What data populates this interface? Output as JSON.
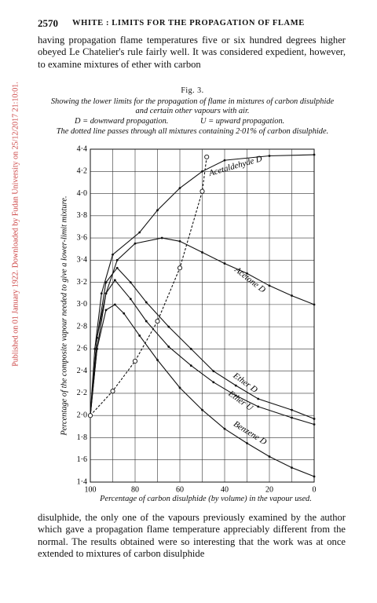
{
  "header": {
    "page": "2570",
    "title": "WHITE : LIMITS FOR THE PROPAGATION OF FLAME"
  },
  "side_note": "Published on 01 January 1922. Downloaded by Fudan University on 25/12/2017 21:10:01.",
  "body": {
    "paragraphs": [
      "having propagation flame temperatures five or six hundred degrees higher obeyed Le Chatelier's rule fairly well. It was considered expedient, however, to examine mixtures of ether with carbon",
      "disulphide, the only one of the vapours previously examined by the author which gave a propagation flame temperature appreciably different from the normal. The results obtained were so interesting that the work was at once extended to mixtures of carbon disulphide"
    ]
  },
  "chart_data": {
    "type": "line",
    "title": "Fig. 3.",
    "caption": "Showing the lower limits for the propagation of flame in mixtures of carbon disulphide and certain other vapours with air.",
    "notes": [
      "D = downward propagation.",
      "U = upward propagation."
    ],
    "annotation": "The dotted line passes through all mixtures containing 2·01% of carbon disulphide.",
    "xlabel": "Percentage of carbon disulphide (by volume) in the vapour used.",
    "ylabel": "Percentage of the composite vapour needed to give a lower-limit mixture.",
    "xlim": [
      100,
      0
    ],
    "ylim": [
      1.4,
      4.4
    ],
    "xticks": [
      100,
      80,
      60,
      40,
      20,
      0
    ],
    "xminor": [
      90,
      70,
      50,
      30,
      10
    ],
    "yticks": [
      {
        "value": 1.4,
        "label": "1·4"
      },
      {
        "value": 1.6,
        "label": "1·6"
      },
      {
        "value": 1.8,
        "label": "1·8"
      },
      {
        "value": 2.0,
        "label": "2·0"
      },
      {
        "value": 2.2,
        "label": "2·2"
      },
      {
        "value": 2.4,
        "label": "2·4"
      },
      {
        "value": 2.6,
        "label": "2·6"
      },
      {
        "value": 2.8,
        "label": "2·8"
      },
      {
        "value": 3.0,
        "label": "3·0"
      },
      {
        "value": 3.2,
        "label": "3·2"
      },
      {
        "value": 3.4,
        "label": "3·4"
      },
      {
        "value": 3.6,
        "label": "3·6"
      },
      {
        "value": 3.8,
        "label": "3·8"
      },
      {
        "value": 4.0,
        "label": "4·0"
      },
      {
        "value": 4.2,
        "label": "4·2"
      },
      {
        "value": 4.4,
        "label": "4·4"
      }
    ],
    "grid": true,
    "series": [
      {
        "name": "Acetaldehyde D",
        "color": "#111111",
        "style": "solid",
        "x": [
          100,
          98,
          95,
          90,
          78,
          70,
          60,
          50,
          40,
          20,
          0
        ],
        "values": [
          2.0,
          2.6,
          3.1,
          3.45,
          3.65,
          3.85,
          4.05,
          4.2,
          4.3,
          4.34,
          4.35
        ]
      },
      {
        "name": "Acetone D",
        "color": "#111111",
        "style": "solid",
        "x": [
          100,
          97,
          93,
          88,
          80,
          68,
          60,
          50,
          40,
          30,
          20,
          10,
          0
        ],
        "values": [
          2.0,
          2.6,
          3.1,
          3.4,
          3.55,
          3.6,
          3.57,
          3.47,
          3.37,
          3.28,
          3.17,
          3.08,
          3.0
        ]
      },
      {
        "name": "Ether D",
        "color": "#111111",
        "style": "solid",
        "x": [
          100,
          97,
          93,
          88,
          82,
          75,
          65,
          55,
          45,
          35,
          25,
          10,
          0
        ],
        "values": [
          2.0,
          2.7,
          3.2,
          3.33,
          3.2,
          3.02,
          2.8,
          2.6,
          2.4,
          2.27,
          2.15,
          2.05,
          1.97
        ]
      },
      {
        "name": "Ether U",
        "color": "#111111",
        "style": "solid",
        "x": [
          100,
          97,
          93,
          89,
          82,
          75,
          65,
          55,
          45,
          35,
          25,
          10,
          0
        ],
        "values": [
          2.0,
          2.7,
          3.1,
          3.22,
          3.05,
          2.85,
          2.62,
          2.45,
          2.3,
          2.18,
          2.08,
          1.98,
          1.92
        ]
      },
      {
        "name": "Benzene D",
        "color": "#111111",
        "style": "solid",
        "x": [
          100,
          97,
          93,
          89,
          85,
          78,
          70,
          60,
          50,
          40,
          30,
          20,
          10,
          0
        ],
        "values": [
          2.0,
          2.6,
          2.95,
          3.0,
          2.92,
          2.72,
          2.5,
          2.25,
          2.05,
          1.88,
          1.75,
          1.63,
          1.53,
          1.45
        ]
      },
      {
        "color": "#111111",
        "style": "dotted",
        "x": [
          100,
          90,
          80,
          70,
          60,
          50,
          48
        ],
        "values": [
          2.0,
          2.22,
          2.49,
          2.85,
          3.33,
          4.02,
          4.33
        ]
      }
    ]
  }
}
